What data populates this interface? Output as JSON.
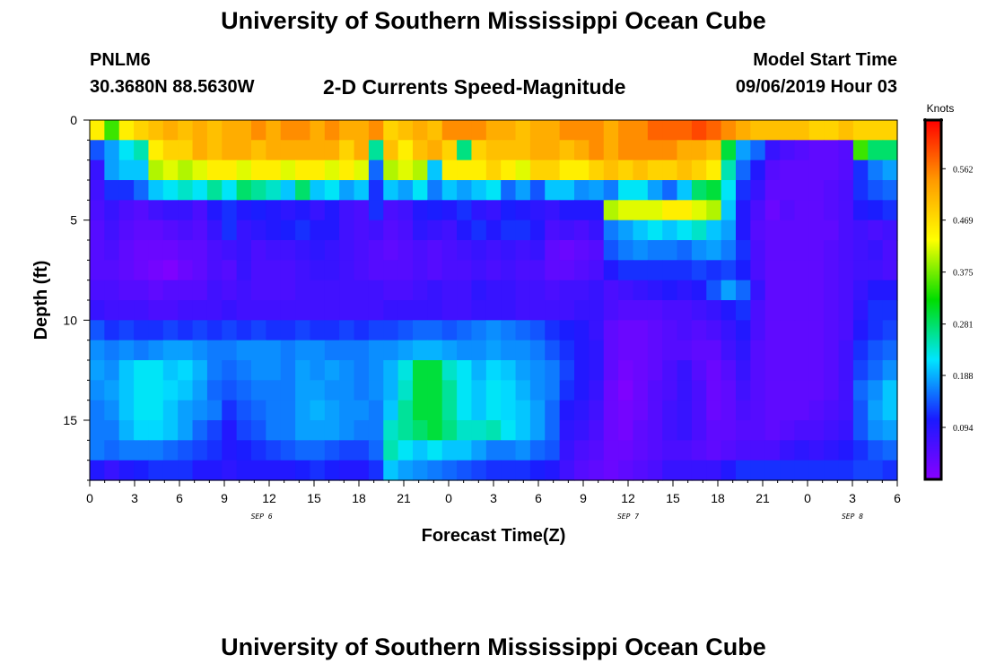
{
  "header": {
    "title": "University of Southern Mississippi Ocean Cube",
    "station_id": "PNLM6",
    "station_location": "30.3680N 88.5630W",
    "chart_title": "2-D Currents Speed-Magnitude",
    "model_label": "Model Start Time",
    "model_start": "09/06/2019 Hour 03"
  },
  "footer": {
    "title": "University of Southern Mississippi Ocean Cube"
  },
  "chart_data": {
    "type": "heatmap",
    "title": "2-D Currents Speed-Magnitude",
    "xlabel": "Forecast Time(Z)",
    "ylabel": "Depth (ft)",
    "x_ticks": [
      "0",
      "3",
      "6",
      "9",
      "12",
      "15",
      "18",
      "21",
      "0",
      "3",
      "6",
      "9",
      "12",
      "15",
      "18",
      "21",
      "0",
      "3",
      "6"
    ],
    "x_range_hours": [
      0,
      54
    ],
    "date_labels": [
      {
        "label": "SEP 6",
        "hour": 11.5
      },
      {
        "label": "SEP 7",
        "hour": 36
      },
      {
        "label": "SEP 8",
        "hour": 51
      }
    ],
    "y_ticks": [
      0,
      5,
      10,
      15
    ],
    "y_range_ft": [
      0,
      18
    ],
    "y_reversed": true,
    "colorbar": {
      "label": "Knots",
      "ticks": [
        0.094,
        0.188,
        0.281,
        0.375,
        0.469,
        0.562
      ],
      "range": [
        0.0,
        0.65
      ],
      "colors": [
        "#8800ff",
        "#1a1aff",
        "#00e5ff",
        "#00dd00",
        "#ffff00",
        "#ff9900",
        "#ff0000"
      ]
    },
    "rows": 18,
    "columns": 55,
    "values": [
      [
        0.45,
        0.35,
        0.45,
        0.48,
        0.5,
        0.52,
        0.5,
        0.52,
        0.5,
        0.52,
        0.52,
        0.55,
        0.52,
        0.55,
        0.55,
        0.52,
        0.55,
        0.52,
        0.52,
        0.55,
        0.48,
        0.5,
        0.52,
        0.5,
        0.55,
        0.55,
        0.55,
        0.52,
        0.52,
        0.5,
        0.52,
        0.52,
        0.55,
        0.55,
        0.55,
        0.52,
        0.55,
        0.55,
        0.58,
        0.58,
        0.58,
        0.6,
        0.58,
        0.55,
        0.52,
        0.5,
        0.5,
        0.5,
        0.5,
        0.48,
        0.48,
        0.5,
        0.48,
        0.48,
        0.48
      ],
      [
        0.14,
        0.18,
        0.22,
        0.25,
        0.45,
        0.48,
        0.48,
        0.52,
        0.5,
        0.52,
        0.52,
        0.5,
        0.52,
        0.52,
        0.52,
        0.52,
        0.52,
        0.48,
        0.52,
        0.26,
        0.5,
        0.45,
        0.5,
        0.52,
        0.48,
        0.27,
        0.48,
        0.5,
        0.5,
        0.5,
        0.52,
        0.52,
        0.5,
        0.52,
        0.55,
        0.52,
        0.55,
        0.55,
        0.55,
        0.55,
        0.52,
        0.52,
        0.5,
        0.3,
        0.18,
        0.15,
        0.08,
        0.06,
        0.05,
        0.04,
        0.04,
        0.05,
        0.35,
        0.28,
        0.28
      ],
      [
        0.08,
        0.18,
        0.2,
        0.2,
        0.4,
        0.42,
        0.4,
        0.42,
        0.45,
        0.45,
        0.42,
        0.45,
        0.45,
        0.42,
        0.45,
        0.45,
        0.42,
        0.45,
        0.42,
        0.15,
        0.4,
        0.42,
        0.4,
        0.2,
        0.45,
        0.45,
        0.45,
        0.48,
        0.45,
        0.42,
        0.48,
        0.48,
        0.45,
        0.45,
        0.48,
        0.5,
        0.48,
        0.5,
        0.48,
        0.48,
        0.5,
        0.48,
        0.45,
        0.25,
        0.15,
        0.1,
        0.05,
        0.04,
        0.04,
        0.04,
        0.04,
        0.05,
        0.12,
        0.16,
        0.18
      ],
      [
        0.07,
        0.12,
        0.12,
        0.15,
        0.2,
        0.22,
        0.24,
        0.22,
        0.26,
        0.22,
        0.28,
        0.26,
        0.24,
        0.2,
        0.28,
        0.2,
        0.22,
        0.18,
        0.2,
        0.12,
        0.2,
        0.18,
        0.22,
        0.16,
        0.2,
        0.18,
        0.2,
        0.22,
        0.15,
        0.18,
        0.14,
        0.2,
        0.2,
        0.17,
        0.18,
        0.16,
        0.22,
        0.22,
        0.18,
        0.15,
        0.2,
        0.28,
        0.3,
        0.22,
        0.12,
        0.08,
        0.04,
        0.04,
        0.04,
        0.04,
        0.05,
        0.06,
        0.12,
        0.14,
        0.15
      ],
      [
        0.06,
        0.08,
        0.06,
        0.05,
        0.07,
        0.08,
        0.08,
        0.06,
        0.1,
        0.12,
        0.1,
        0.11,
        0.1,
        0.09,
        0.1,
        0.08,
        0.1,
        0.07,
        0.06,
        0.12,
        0.06,
        0.07,
        0.1,
        0.11,
        0.1,
        0.12,
        0.09,
        0.08,
        0.11,
        0.1,
        0.09,
        0.08,
        0.1,
        0.1,
        0.1,
        0.4,
        0.42,
        0.42,
        0.42,
        0.45,
        0.45,
        0.42,
        0.4,
        0.2,
        0.1,
        0.06,
        0.03,
        0.05,
        0.04,
        0.04,
        0.05,
        0.06,
        0.1,
        0.11,
        0.12
      ],
      [
        0.05,
        0.07,
        0.05,
        0.04,
        0.04,
        0.05,
        0.06,
        0.05,
        0.08,
        0.12,
        0.08,
        0.09,
        0.1,
        0.11,
        0.12,
        0.1,
        0.1,
        0.07,
        0.06,
        0.07,
        0.05,
        0.06,
        0.09,
        0.08,
        0.07,
        0.1,
        0.12,
        0.1,
        0.12,
        0.12,
        0.1,
        0.06,
        0.07,
        0.06,
        0.08,
        0.16,
        0.18,
        0.2,
        0.22,
        0.2,
        0.22,
        0.24,
        0.2,
        0.18,
        0.1,
        0.05,
        0.04,
        0.04,
        0.04,
        0.04,
        0.04,
        0.06,
        0.07,
        0.06,
        0.07
      ],
      [
        0.05,
        0.06,
        0.04,
        0.03,
        0.03,
        0.03,
        0.04,
        0.04,
        0.06,
        0.07,
        0.08,
        0.06,
        0.07,
        0.07,
        0.08,
        0.09,
        0.08,
        0.07,
        0.06,
        0.05,
        0.04,
        0.05,
        0.06,
        0.05,
        0.06,
        0.07,
        0.08,
        0.07,
        0.08,
        0.07,
        0.08,
        0.04,
        0.03,
        0.04,
        0.05,
        0.14,
        0.16,
        0.17,
        0.16,
        0.16,
        0.15,
        0.17,
        0.18,
        0.16,
        0.12,
        0.06,
        0.04,
        0.04,
        0.04,
        0.04,
        0.05,
        0.06,
        0.07,
        0.08,
        0.06
      ],
      [
        0.05,
        0.05,
        0.04,
        0.03,
        0.02,
        0.01,
        0.03,
        0.04,
        0.06,
        0.05,
        0.08,
        0.06,
        0.06,
        0.06,
        0.07,
        0.08,
        0.08,
        0.07,
        0.06,
        0.05,
        0.05,
        0.05,
        0.06,
        0.05,
        0.06,
        0.06,
        0.07,
        0.06,
        0.07,
        0.06,
        0.06,
        0.04,
        0.04,
        0.05,
        0.06,
        0.1,
        0.12,
        0.12,
        0.12,
        0.12,
        0.12,
        0.13,
        0.12,
        0.13,
        0.11,
        0.06,
        0.04,
        0.04,
        0.04,
        0.04,
        0.05,
        0.06,
        0.07,
        0.07,
        0.06
      ],
      [
        0.06,
        0.06,
        0.05,
        0.05,
        0.04,
        0.05,
        0.05,
        0.05,
        0.07,
        0.06,
        0.07,
        0.06,
        0.06,
        0.06,
        0.07,
        0.07,
        0.07,
        0.07,
        0.07,
        0.07,
        0.06,
        0.06,
        0.07,
        0.08,
        0.07,
        0.07,
        0.09,
        0.08,
        0.08,
        0.07,
        0.07,
        0.06,
        0.07,
        0.07,
        0.08,
        0.06,
        0.07,
        0.08,
        0.09,
        0.1,
        0.09,
        0.1,
        0.14,
        0.18,
        0.15,
        0.08,
        0.04,
        0.04,
        0.04,
        0.04,
        0.05,
        0.06,
        0.08,
        0.1,
        0.1
      ],
      [
        0.08,
        0.07,
        0.07,
        0.07,
        0.06,
        0.06,
        0.07,
        0.07,
        0.07,
        0.08,
        0.07,
        0.07,
        0.07,
        0.07,
        0.07,
        0.07,
        0.07,
        0.07,
        0.07,
        0.07,
        0.08,
        0.08,
        0.08,
        0.08,
        0.07,
        0.07,
        0.08,
        0.08,
        0.08,
        0.07,
        0.07,
        0.07,
        0.07,
        0.08,
        0.08,
        0.06,
        0.05,
        0.05,
        0.05,
        0.06,
        0.06,
        0.07,
        0.08,
        0.1,
        0.12,
        0.06,
        0.04,
        0.04,
        0.04,
        0.04,
        0.05,
        0.06,
        0.09,
        0.12,
        0.12
      ],
      [
        0.14,
        0.12,
        0.13,
        0.12,
        0.12,
        0.13,
        0.12,
        0.13,
        0.12,
        0.13,
        0.12,
        0.13,
        0.12,
        0.12,
        0.13,
        0.12,
        0.12,
        0.13,
        0.12,
        0.13,
        0.13,
        0.14,
        0.15,
        0.15,
        0.14,
        0.15,
        0.16,
        0.17,
        0.16,
        0.15,
        0.14,
        0.12,
        0.11,
        0.1,
        0.08,
        0.04,
        0.03,
        0.03,
        0.04,
        0.05,
        0.06,
        0.05,
        0.06,
        0.08,
        0.1,
        0.06,
        0.04,
        0.04,
        0.04,
        0.04,
        0.05,
        0.06,
        0.1,
        0.12,
        0.13
      ],
      [
        0.17,
        0.16,
        0.17,
        0.16,
        0.17,
        0.18,
        0.18,
        0.17,
        0.16,
        0.16,
        0.17,
        0.17,
        0.17,
        0.16,
        0.17,
        0.17,
        0.16,
        0.16,
        0.16,
        0.17,
        0.17,
        0.18,
        0.19,
        0.19,
        0.18,
        0.17,
        0.17,
        0.18,
        0.17,
        0.17,
        0.16,
        0.14,
        0.12,
        0.1,
        0.09,
        0.04,
        0.03,
        0.03,
        0.04,
        0.05,
        0.05,
        0.04,
        0.04,
        0.07,
        0.09,
        0.05,
        0.04,
        0.04,
        0.04,
        0.04,
        0.05,
        0.07,
        0.12,
        0.14,
        0.15
      ],
      [
        0.18,
        0.17,
        0.2,
        0.22,
        0.22,
        0.2,
        0.21,
        0.19,
        0.16,
        0.15,
        0.16,
        0.17,
        0.17,
        0.16,
        0.18,
        0.17,
        0.18,
        0.17,
        0.16,
        0.17,
        0.19,
        0.23,
        0.3,
        0.3,
        0.24,
        0.22,
        0.19,
        0.21,
        0.2,
        0.18,
        0.17,
        0.16,
        0.13,
        0.1,
        0.09,
        0.04,
        0.02,
        0.03,
        0.04,
        0.06,
        0.08,
        0.05,
        0.03,
        0.05,
        0.08,
        0.05,
        0.04,
        0.04,
        0.04,
        0.04,
        0.05,
        0.07,
        0.13,
        0.15,
        0.17
      ],
      [
        0.17,
        0.18,
        0.2,
        0.22,
        0.22,
        0.21,
        0.2,
        0.18,
        0.15,
        0.14,
        0.15,
        0.16,
        0.16,
        0.16,
        0.18,
        0.18,
        0.17,
        0.17,
        0.16,
        0.17,
        0.19,
        0.24,
        0.3,
        0.3,
        0.26,
        0.22,
        0.2,
        0.22,
        0.21,
        0.19,
        0.17,
        0.16,
        0.12,
        0.1,
        0.08,
        0.03,
        0.01,
        0.03,
        0.05,
        0.06,
        0.08,
        0.06,
        0.03,
        0.04,
        0.07,
        0.05,
        0.04,
        0.04,
        0.04,
        0.04,
        0.05,
        0.07,
        0.15,
        0.17,
        0.2
      ],
      [
        0.16,
        0.17,
        0.2,
        0.22,
        0.22,
        0.2,
        0.18,
        0.17,
        0.16,
        0.12,
        0.14,
        0.15,
        0.16,
        0.16,
        0.18,
        0.19,
        0.18,
        0.17,
        0.17,
        0.16,
        0.2,
        0.26,
        0.3,
        0.3,
        0.26,
        0.22,
        0.2,
        0.22,
        0.21,
        0.2,
        0.18,
        0.15,
        0.1,
        0.09,
        0.07,
        0.03,
        0.02,
        0.03,
        0.05,
        0.07,
        0.08,
        0.06,
        0.03,
        0.04,
        0.06,
        0.05,
        0.04,
        0.04,
        0.04,
        0.05,
        0.06,
        0.07,
        0.14,
        0.18,
        0.2
      ],
      [
        0.16,
        0.16,
        0.19,
        0.21,
        0.21,
        0.2,
        0.18,
        0.15,
        0.13,
        0.1,
        0.13,
        0.14,
        0.16,
        0.16,
        0.18,
        0.18,
        0.18,
        0.17,
        0.16,
        0.16,
        0.24,
        0.26,
        0.28,
        0.3,
        0.27,
        0.24,
        0.24,
        0.25,
        0.22,
        0.2,
        0.18,
        0.15,
        0.09,
        0.08,
        0.06,
        0.03,
        0.02,
        0.04,
        0.05,
        0.07,
        0.08,
        0.06,
        0.04,
        0.04,
        0.05,
        0.05,
        0.04,
        0.05,
        0.06,
        0.06,
        0.07,
        0.08,
        0.14,
        0.17,
        0.18
      ],
      [
        0.16,
        0.15,
        0.16,
        0.16,
        0.16,
        0.15,
        0.14,
        0.13,
        0.12,
        0.1,
        0.11,
        0.12,
        0.13,
        0.14,
        0.15,
        0.15,
        0.14,
        0.13,
        0.13,
        0.15,
        0.25,
        0.22,
        0.2,
        0.22,
        0.2,
        0.2,
        0.18,
        0.16,
        0.16,
        0.17,
        0.15,
        0.14,
        0.08,
        0.06,
        0.05,
        0.03,
        0.03,
        0.04,
        0.05,
        0.06,
        0.06,
        0.05,
        0.04,
        0.05,
        0.06,
        0.06,
        0.06,
        0.08,
        0.09,
        0.08,
        0.09,
        0.1,
        0.12,
        0.14,
        0.15
      ],
      [
        0.1,
        0.08,
        0.1,
        0.11,
        0.12,
        0.12,
        0.12,
        0.1,
        0.1,
        0.09,
        0.1,
        0.1,
        0.1,
        0.1,
        0.11,
        0.12,
        0.11,
        0.1,
        0.1,
        0.12,
        0.2,
        0.18,
        0.17,
        0.16,
        0.15,
        0.14,
        0.13,
        0.12,
        0.12,
        0.12,
        0.11,
        0.1,
        0.07,
        0.05,
        0.04,
        0.03,
        0.04,
        0.05,
        0.06,
        0.08,
        0.08,
        0.08,
        0.08,
        0.1,
        0.12,
        0.12,
        0.12,
        0.12,
        0.12,
        0.12,
        0.12,
        0.12,
        0.13,
        0.13,
        0.12
      ]
    ]
  }
}
